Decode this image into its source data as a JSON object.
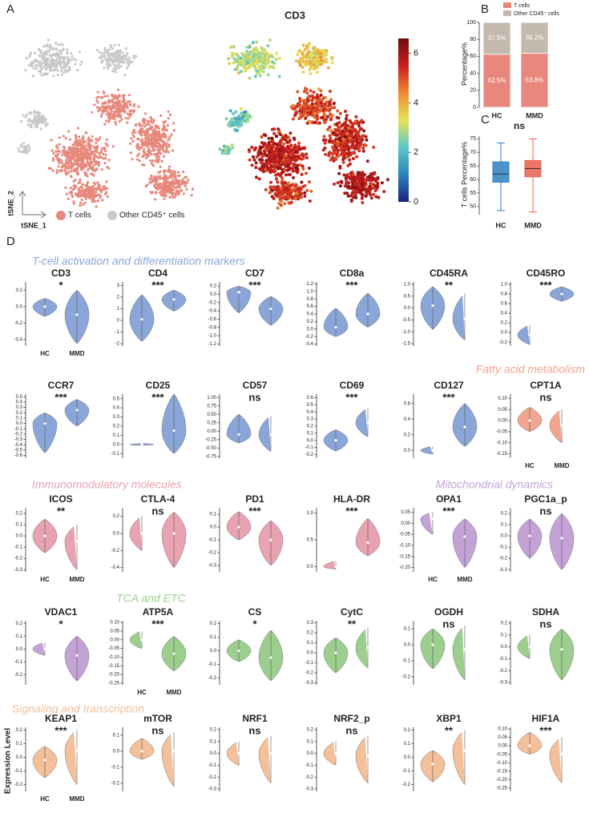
{
  "panel_labels": [
    "A",
    "B",
    "C",
    "D"
  ],
  "sections": [
    {
      "title": "T-cell activation and differentiation markers",
      "color": "#8aa6d8"
    },
    {
      "title": "Fatty acid metabolism",
      "color": "#f2a58f"
    },
    {
      "title": "Immunomodulatory molecules",
      "color": "#e9a2b1"
    },
    {
      "title": "Mitochondrial dynamics",
      "color": "#c3a3d6"
    },
    {
      "title": "TCA and ETC",
      "color": "#9ccf8e"
    },
    {
      "title": "Signaling and transcription",
      "color": "#f4c09a"
    }
  ],
  "expression_label": "Expression Level",
  "chart_data": [
    {
      "type": "tsne",
      "xlabel": "tSNE_1",
      "ylabel": "tSNE_2",
      "series": [
        {
          "name": "T cells",
          "color": "#e8887c"
        },
        {
          "name": "Other CD45⁺ cells",
          "color": "#c9c9c9"
        }
      ]
    },
    {
      "type": "tsne",
      "title": "CD3",
      "colorbar": {
        "ylim": [
          0,
          6.6
        ],
        "yticks": [
          0,
          2,
          4,
          6
        ],
        "colors": [
          "#1a237e",
          "#2b83ba",
          "#5ec8c8",
          "#e6e35a",
          "#f08a30",
          "#c81e1e",
          "#6b0d0d"
        ]
      }
    },
    {
      "type": "bar",
      "ylabel": "Percentage%",
      "categories": [
        "HC",
        "MMD"
      ],
      "ylim": [
        0,
        100
      ],
      "yticks": [
        0,
        20,
        40,
        60,
        80,
        100
      ],
      "series": [
        {
          "name": "T cells",
          "color": "#e8887c",
          "values": [
            62.5,
            63.8
          ],
          "value_labels": [
            "62.5%",
            "63.8%"
          ]
        },
        {
          "name": "Other CD45⁺ cells",
          "color": "#c4b9ad",
          "values": [
            37.5,
            36.2
          ],
          "value_labels": [
            "37.5%",
            "36.2%"
          ]
        }
      ]
    },
    {
      "type": "box",
      "annotation": "ns",
      "ylabel": "T cells Percentage%",
      "categories": [
        "HC",
        "MMD"
      ],
      "colors": [
        "#2f7fc1",
        "#e8604c"
      ],
      "boxes": [
        [
          48.5,
          59,
          62,
          66.5,
          73.5
        ],
        [
          48,
          61,
          64,
          67,
          75
        ]
      ],
      "ylim": [
        47,
        76
      ],
      "yticks": [
        50,
        55,
        60,
        65,
        70,
        75
      ]
    },
    {
      "type": "violin",
      "title": "CD3",
      "annotation": "*",
      "color": "#8aa6d8",
      "categories": [
        "HC",
        "MMD"
      ],
      "ylim": [
        -0.48,
        0.3
      ],
      "yticks": [
        -0.4,
        -0.2,
        {
          "value": 0,
          "label": "0.0"
        },
        0.2
      ],
      "values": [
        0,
        -0.1
      ],
      "ranges": [
        [
          -0.12,
          0.1
        ],
        [
          -0.45,
          0.2
        ]
      ]
    },
    {
      "type": "violin",
      "title": "CD4",
      "annotation": "***",
      "color": "#8aa6d8",
      "ylim": [
        -2.2,
        3.3
      ],
      "yticks": [
        -2,
        -1,
        0,
        1,
        2,
        3
      ],
      "values": [
        0.1,
        1.8
      ],
      "ranges": [
        [
          -1.8,
          2.2
        ],
        [
          0.8,
          2.6
        ]
      ]
    },
    {
      "type": "violin",
      "title": "CD7",
      "annotation": "***",
      "color": "#8aa6d8",
      "ylim": [
        -1.25,
        0.3
      ],
      "yticks": [
        -1.2,
        {
          "value": -1,
          "label": "-1.0"
        },
        -0.8,
        -0.6,
        -0.4,
        -0.2,
        {
          "value": 0,
          "label": "0.0"
        },
        0.2
      ],
      "values": [
        0.05,
        -0.35
      ],
      "ranges": [
        [
          -0.45,
          0.2
        ],
        [
          -0.75,
          -0.05
        ]
      ]
    },
    {
      "type": "violin",
      "title": "CD8a",
      "annotation": "***",
      "color": "#8aa6d8",
      "ylim": [
        -0.45,
        1.25
      ],
      "yticks": [
        -0.4,
        -0.2,
        {
          "value": 0,
          "label": "0.0"
        },
        0.2,
        0.4,
        0.6,
        0.8,
        {
          "value": 1,
          "label": "1.0"
        },
        1.2
      ],
      "values": [
        0.05,
        0.4
      ],
      "ranges": [
        [
          -0.2,
          0.55
        ],
        [
          0.05,
          0.95
        ]
      ]
    },
    {
      "type": "violin",
      "title": "CD45RA",
      "annotation": "**",
      "color": "#8aa6d8",
      "ylim": [
        -1.6,
        1.1
      ],
      "yticks": [
        -1.5,
        {
          "value": -1,
          "label": "-1.0"
        },
        -0.5,
        {
          "value": 0,
          "label": "0.0"
        },
        0.5,
        {
          "value": 1,
          "label": "1.0"
        }
      ],
      "values": [
        0.1,
        -0.45
      ],
      "ranges": [
        [
          -0.9,
          0.9
        ],
        [
          -1.35,
          0.6
        ]
      ]
    },
    {
      "type": "violin",
      "title": "CD45RO",
      "annotation": "***",
      "color": "#8aa6d8",
      "ylim": [
        -0.28,
        1.05
      ],
      "yticks": [
        -0.2,
        {
          "value": 0,
          "label": "0.0"
        },
        0.2,
        0.4,
        0.6,
        0.8,
        {
          "value": 1,
          "label": "1.0"
        }
      ],
      "values": [
        -0.05,
        0.8
      ],
      "ranges": [
        [
          -0.25,
          0.15
        ],
        [
          0.65,
          0.95
        ]
      ]
    },
    {
      "type": "violin",
      "title": "CCR7",
      "annotation": "***",
      "color": "#8aa6d8",
      "ylim": [
        -0.65,
        0.55
      ],
      "yticks": [
        -0.6,
        -0.5,
        -0.4,
        -0.3,
        -0.2,
        -0.1,
        {
          "value": 0,
          "label": "0.0"
        },
        0.1,
        0.2,
        0.3,
        0.4,
        0.5
      ],
      "values": [
        0,
        0.25
      ],
      "ranges": [
        [
          -0.55,
          0.2
        ],
        [
          -0.05,
          0.45
        ]
      ]
    },
    {
      "type": "violin",
      "title": "CD25",
      "annotation": "***",
      "color": "#8aa6d8",
      "ylim": [
        -0.15,
        0.55
      ],
      "yticks": [
        -0.1,
        {
          "value": 0,
          "label": "0.0"
        },
        0.1,
        0.2,
        0.3,
        0.4,
        0.5
      ],
      "values": [
        0,
        0.15
      ],
      "ranges": [
        [
          -0.01,
          0.01
        ],
        [
          -0.1,
          0.55
        ]
      ]
    },
    {
      "type": "violin",
      "title": "CD57",
      "annotation": "ns",
      "color": "#8aa6d8",
      "ylim": [
        -0.8,
        1.1
      ],
      "yticks": [
        -0.75,
        {
          "value": -0.5,
          "label": "-0.50"
        },
        -0.25,
        {
          "value": 0,
          "label": "0.00"
        },
        0.25,
        {
          "value": 0.5,
          "label": "0.50"
        },
        0.75,
        {
          "value": 1,
          "label": "1.00"
        }
      ],
      "values": [
        -0.1,
        -0.1
      ],
      "ranges": [
        [
          -0.35,
          0.5
        ],
        [
          -0.6,
          0.45
        ]
      ]
    },
    {
      "type": "violin",
      "title": "CD69",
      "annotation": "***",
      "color": "#8aa6d8",
      "ylim": [
        -0.25,
        0.65
      ],
      "yticks": [
        -0.2,
        -0.1,
        {
          "value": 0,
          "label": "0.0"
        },
        0.1,
        0.2,
        0.3,
        0.4,
        0.5,
        0.6
      ],
      "values": [
        0,
        0.25
      ],
      "ranges": [
        [
          -0.15,
          0.15
        ],
        [
          0.05,
          0.45
        ]
      ]
    },
    {
      "type": "violin",
      "title": "CD127",
      "annotation": "***",
      "color": "#8aa6d8",
      "ylim": [
        -0.1,
        0.72
      ],
      "yticks": [
        {
          "value": 0,
          "label": "0.0"
        },
        0.2,
        0.4,
        0.6
      ],
      "values": [
        0,
        0.3
      ],
      "ranges": [
        [
          -0.05,
          0.05
        ],
        [
          0.05,
          0.6
        ]
      ]
    },
    {
      "type": "violin",
      "title": "CPT1A",
      "annotation": "ns",
      "color": "#f2a58f",
      "categories": [
        "HC",
        "MMD"
      ],
      "ylim": [
        -0.17,
        0.12
      ],
      "yticks": [
        -0.15,
        {
          "value": -0.1,
          "label": "-0.10"
        },
        -0.05,
        {
          "value": 0,
          "label": "0.00"
        },
        0.05,
        {
          "value": 0.1,
          "label": "0.10"
        }
      ],
      "values": [
        0,
        -0.02
      ],
      "ranges": [
        [
          -0.05,
          0.06
        ],
        [
          -0.1,
          0.05
        ]
      ]
    },
    {
      "type": "violin",
      "title": "ICOS",
      "annotation": "**",
      "color": "#e9a2b1",
      "categories": [
        "HC",
        "MMD"
      ],
      "ylim": [
        -0.32,
        0.25
      ],
      "yticks": [
        -0.3,
        -0.2,
        -0.1,
        {
          "value": 0,
          "label": "0.0"
        },
        0.1,
        0.2
      ],
      "values": [
        0,
        -0.05
      ],
      "ranges": [
        [
          -0.15,
          0.15
        ],
        [
          -0.3,
          0.1
        ]
      ]
    },
    {
      "type": "violin",
      "title": "CTLA-4",
      "annotation": "ns",
      "color": "#e9a2b1",
      "ylim": [
        -0.45,
        0.3
      ],
      "yticks": [
        -0.4,
        -0.2,
        {
          "value": 0,
          "label": "0.0"
        },
        0.2
      ],
      "values": [
        0,
        0
      ],
      "ranges": [
        [
          -0.2,
          0.2
        ],
        [
          -0.4,
          0.25
        ]
      ]
    },
    {
      "type": "violin",
      "title": "PD1",
      "annotation": "***",
      "color": "#e9a2b1",
      "ylim": [
        -0.35,
        0.15
      ],
      "yticks": [
        -0.3,
        -0.2,
        -0.1,
        {
          "value": 0,
          "label": "0.0"
        },
        0.1
      ],
      "values": [
        0,
        -0.1
      ],
      "ranges": [
        [
          -0.1,
          0.12
        ],
        [
          -0.3,
          0.05
        ]
      ]
    },
    {
      "type": "violin",
      "title": "HLA-DR",
      "annotation": "***",
      "color": "#e9a2b1",
      "ylim": [
        -0.1,
        1.1
      ],
      "yticks": [
        {
          "value": 0,
          "label": "0.0"
        },
        0.5,
        {
          "value": 1,
          "label": "1.0"
        }
      ],
      "values": [
        0,
        0.45
      ],
      "ranges": [
        [
          -0.05,
          0.1
        ],
        [
          0.2,
          0.9
        ]
      ]
    },
    {
      "type": "violin",
      "title": "OPA1",
      "annotation": "***",
      "color": "#c3a3d6",
      "categories": [
        "HC",
        "MMD"
      ],
      "ylim": [
        -0.22,
        0.07
      ],
      "yticks": [
        {
          "value": -0.2,
          "label": "-0.20"
        },
        -0.15,
        {
          "value": -0.1,
          "label": "-0.10"
        },
        -0.05,
        {
          "value": 0,
          "label": "0.00"
        },
        0.05
      ],
      "values": [
        0.02,
        -0.06
      ],
      "ranges": [
        [
          -0.05,
          0.05
        ],
        [
          -0.2,
          0.02
        ]
      ]
    },
    {
      "type": "violin",
      "title": "PGC1a_p",
      "annotation": "ns",
      "color": "#c3a3d6",
      "ylim": [
        -0.32,
        0.25
      ],
      "yticks": [
        -0.3,
        -0.2,
        -0.1,
        {
          "value": 0,
          "label": "0.0"
        },
        0.1,
        0.2
      ],
      "values": [
        0,
        -0.02
      ],
      "ranges": [
        [
          -0.2,
          0.15
        ],
        [
          -0.3,
          0.2
        ]
      ]
    },
    {
      "type": "violin",
      "title": "VDAC1",
      "annotation": "*",
      "color": "#c3a3d6",
      "ylim": [
        -0.28,
        0.22
      ],
      "yticks": [
        -0.2,
        -0.1,
        {
          "value": 0,
          "label": "0.0"
        },
        0.1,
        0.2
      ],
      "values": [
        0,
        -0.05
      ],
      "ranges": [
        [
          -0.05,
          0.05
        ],
        [
          -0.25,
          0.1
        ]
      ]
    },
    {
      "type": "violin",
      "title": "ATP5A",
      "annotation": "***",
      "color": "#9ccf8e",
      "categories": [
        "HC",
        "MMD"
      ],
      "ylim": [
        -0.26,
        0.11
      ],
      "yticks": [
        -0.25,
        {
          "value": -0.2,
          "label": "-0.20"
        },
        -0.15,
        {
          "value": -0.1,
          "label": "-0.10"
        },
        -0.05,
        {
          "value": 0,
          "label": "0.00"
        },
        0.05,
        {
          "value": 0.1,
          "label": "0.10"
        }
      ],
      "values": [
        0,
        -0.08
      ],
      "ranges": [
        [
          -0.05,
          0.05
        ],
        [
          -0.18,
          0.02
        ]
      ]
    },
    {
      "type": "violin",
      "title": "CS",
      "annotation": "*",
      "color": "#9ccf8e",
      "ylim": [
        -0.25,
        0.22
      ],
      "yticks": [
        -0.2,
        -0.1,
        {
          "value": 0,
          "label": "0.0"
        },
        0.1,
        0.2
      ],
      "values": [
        0,
        -0.05
      ],
      "ranges": [
        [
          -0.08,
          0.08
        ],
        [
          -0.22,
          0.15
        ]
      ]
    },
    {
      "type": "violin",
      "title": "CytC",
      "annotation": "**",
      "color": "#9ccf8e",
      "ylim": [
        -0.32,
        0.32
      ],
      "yticks": [
        -0.3,
        -0.2,
        -0.1,
        {
          "value": 0,
          "label": "0.0"
        },
        0.1,
        0.2,
        0.3
      ],
      "values": [
        0,
        0.05
      ],
      "ranges": [
        [
          -0.2,
          0.15
        ],
        [
          -0.15,
          0.25
        ]
      ]
    },
    {
      "type": "violin",
      "title": "OGDH",
      "annotation": "ns",
      "color": "#9ccf8e",
      "ylim": [
        -0.25,
        0.15
      ],
      "yticks": [
        -0.2,
        -0.1,
        {
          "value": 0,
          "label": "0.0"
        },
        0.1
      ],
      "values": [
        0,
        -0.03
      ],
      "ranges": [
        [
          -0.15,
          0.1
        ],
        [
          -0.22,
          0.12
        ]
      ]
    },
    {
      "type": "violin",
      "title": "SDHA",
      "annotation": "ns",
      "color": "#9ccf8e",
      "ylim": [
        -0.32,
        0.22
      ],
      "yticks": [
        -0.3,
        -0.2,
        -0.1,
        {
          "value": 0,
          "label": "0.0"
        },
        0.1,
        0.2
      ],
      "values": [
        0,
        -0.02
      ],
      "ranges": [
        [
          -0.1,
          0.1
        ],
        [
          -0.28,
          0.15
        ]
      ]
    },
    {
      "type": "violin",
      "title": "KEAP1",
      "annotation": "***",
      "color": "#f4c09a",
      "categories": [
        "HC",
        "MMD"
      ],
      "ylim": [
        -0.25,
        0.22
      ],
      "yticks": [
        -0.2,
        -0.1,
        {
          "value": 0,
          "label": "0.0"
        },
        0.1,
        0.2
      ],
      "values": [
        -0.02,
        0.05
      ],
      "ranges": [
        [
          -0.15,
          0.08
        ],
        [
          -0.2,
          0.2
        ]
      ]
    },
    {
      "type": "violin",
      "title": "mTOR",
      "annotation": "ns",
      "color": "#f4c09a",
      "ylim": [
        -0.25,
        0.15
      ],
      "yticks": [
        -0.2,
        -0.1,
        {
          "value": 0,
          "label": "0.0"
        },
        0.1
      ],
      "values": [
        0,
        0
      ],
      "ranges": [
        [
          -0.05,
          0.08
        ],
        [
          -0.22,
          0.12
        ]
      ]
    },
    {
      "type": "violin",
      "title": "NRF1",
      "annotation": "ns",
      "color": "#f4c09a",
      "ylim": [
        -0.32,
        0.22
      ],
      "yticks": [
        -0.3,
        -0.2,
        -0.1,
        {
          "value": 0,
          "label": "0.0"
        },
        0.1,
        0.2
      ],
      "values": [
        0,
        0
      ],
      "ranges": [
        [
          -0.1,
          0.1
        ],
        [
          -0.25,
          0.15
        ]
      ]
    },
    {
      "type": "violin",
      "title": "NRF2_p",
      "annotation": "ns",
      "color": "#f4c09a",
      "ylim": [
        -0.32,
        0.22
      ],
      "yticks": [
        -0.3,
        -0.2,
        -0.1,
        {
          "value": 0,
          "label": "0.0"
        },
        0.1,
        0.2
      ],
      "values": [
        0,
        -0.02
      ],
      "ranges": [
        [
          -0.1,
          0.1
        ],
        [
          -0.25,
          0.15
        ]
      ]
    },
    {
      "type": "violin",
      "title": "XBP1",
      "annotation": "**",
      "color": "#f4c09a",
      "ylim": [
        -0.25,
        0.22
      ],
      "yticks": [
        -0.2,
        -0.1,
        {
          "value": 0,
          "label": "0.0"
        },
        0.1,
        0.2
      ],
      "values": [
        -0.05,
        0.05
      ],
      "ranges": [
        [
          -0.18,
          0.05
        ],
        [
          -0.2,
          0.2
        ]
      ]
    },
    {
      "type": "violin",
      "title": "HIF1A",
      "annotation": "***",
      "color": "#f4c09a",
      "ylim": [
        -0.27,
        0.11
      ],
      "yticks": [
        -0.25,
        {
          "value": -0.2,
          "label": "-0.20"
        },
        -0.15,
        {
          "value": -0.1,
          "label": "-0.10"
        },
        -0.05,
        {
          "value": 0,
          "label": "0.00"
        },
        0.05,
        {
          "value": 0.1,
          "label": "0.10"
        }
      ],
      "values": [
        0,
        -0.05
      ],
      "ranges": [
        [
          -0.05,
          0.08
        ],
        [
          -0.22,
          0.05
        ]
      ]
    }
  ]
}
